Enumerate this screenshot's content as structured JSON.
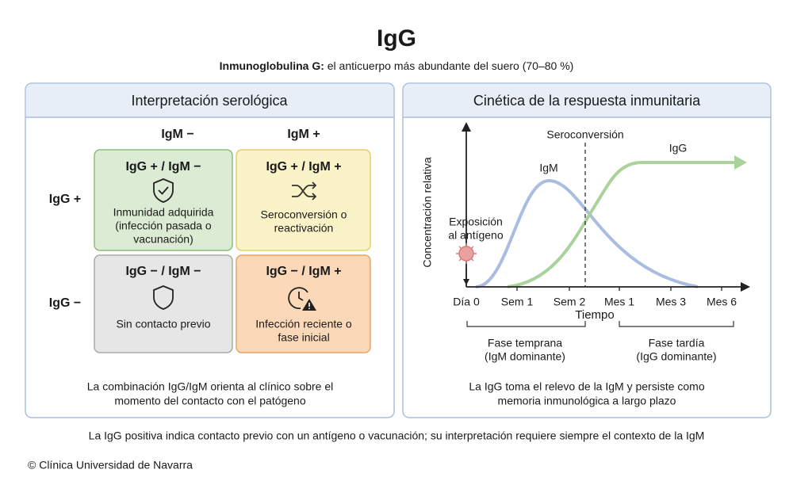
{
  "header": {
    "title": "IgG",
    "subtitle_bold": "Inmunoglobulina G:",
    "subtitle": "el anticuerpo más abundante del suero (70–80 %)"
  },
  "left_panel": {
    "title": "Interpretación serológica",
    "col_headers": [
      "IgM −",
      "IgM +"
    ],
    "row_headers": [
      "IgG +",
      "IgG −"
    ],
    "cells": [
      {
        "label": "IgG + / IgM −",
        "text": [
          "Inmunidad adquirida",
          "(infección pasada o",
          "vacunación)"
        ]
      },
      {
        "label": "IgG + / IgM +",
        "text": [
          "Seroconversión o",
          "reactivación"
        ]
      },
      {
        "label": "IgG − / IgM −",
        "text": [
          "Sin contacto previo"
        ]
      },
      {
        "label": "IgG − / IgM +",
        "text": [
          "Infección reciente o",
          "fase inicial"
        ]
      }
    ],
    "footer": [
      "La combinación IgG/IgM orienta al clínico sobre el",
      "momento del contacto con el patógeno"
    ]
  },
  "right_panel": {
    "title": "Cinética de la respuesta inmunitaria",
    "y_axis": "Concentración relativa",
    "x_axis": "Tiempo",
    "x_labels": [
      "Día 0",
      "Sem 1",
      "Sem 2",
      "Mes 1",
      "Mes 3",
      "Mes 6"
    ],
    "annotations": {
      "seroconversion": "Seroconversión",
      "igm": "IgM",
      "igg": "IgG",
      "exposure": [
        "Exposición",
        "al antígeno"
      ]
    },
    "phases": [
      {
        "name": "Fase temprana",
        "detail": "(IgM dominante)"
      },
      {
        "name": "Fase tardía",
        "detail": "(IgG dominante)"
      }
    ],
    "footer": [
      "La IgG toma el relevo de la IgM y persiste como",
      "memoria inmunológica a largo plazo"
    ]
  },
  "footnote": "La IgG positiva indica contacto previo con un antígeno o vacunación; su interpretación requiere siempre el contexto de la IgM",
  "credit": "© Clínica Universidad de Navarra"
}
